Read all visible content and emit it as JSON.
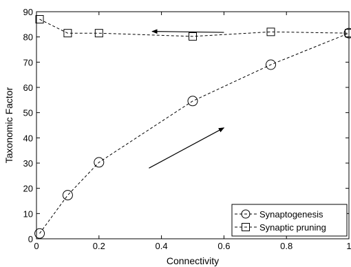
{
  "chart_data": {
    "type": "line",
    "title": "",
    "xlabel": "Connectivity",
    "ylabel": "Taxonomic Factor",
    "xlim": [
      0,
      1
    ],
    "ylim": [
      0,
      90
    ],
    "xticks": [
      "0",
      "0.2",
      "0.4",
      "0.6",
      "0.8",
      "1"
    ],
    "yticks": [
      "0",
      "10",
      "20",
      "30",
      "40",
      "50",
      "60",
      "70",
      "80",
      "90"
    ],
    "grid": false,
    "legend_position": "bottom-right",
    "series": [
      {
        "name": "Synaptogenesis",
        "marker": "circle",
        "line_style": "dashed",
        "color": "#000000",
        "x": [
          0.01,
          0.1,
          0.2,
          0.5,
          0.75,
          1.0
        ],
        "y": [
          2.1,
          17.3,
          30.3,
          54.6,
          69.0,
          81.5
        ]
      },
      {
        "name": "Synaptic pruning",
        "marker": "square",
        "line_style": "dashed",
        "color": "#000000",
        "x": [
          0.01,
          0.1,
          0.2,
          0.5,
          0.75,
          1.0
        ],
        "y": [
          87.0,
          81.5,
          81.5,
          80.2,
          82.0,
          81.5
        ]
      }
    ],
    "annotations": [
      {
        "type": "arrow",
        "from": [
          0.6,
          81.8
        ],
        "to": [
          0.37,
          82.2
        ],
        "meaning": "direction of pruning"
      },
      {
        "type": "arrow",
        "from": [
          0.36,
          28.0
        ],
        "to": [
          0.6,
          44.0
        ],
        "meaning": "direction of synaptogenesis"
      }
    ]
  }
}
